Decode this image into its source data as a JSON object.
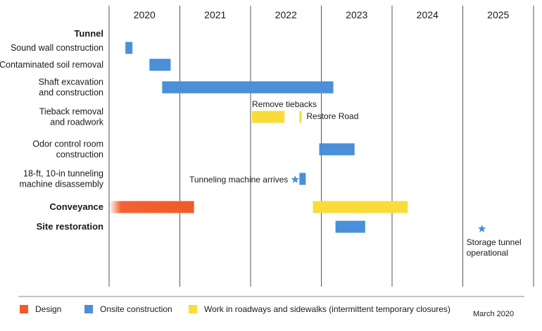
{
  "chart_data": {
    "type": "gantt",
    "years": [
      "2020",
      "2021",
      "2022",
      "2023",
      "2024",
      "2025"
    ],
    "x_range": [
      2020.0,
      2026.0
    ],
    "rows": [
      {
        "lines": [
          "Tunnel"
        ],
        "bold": true
      },
      {
        "lines": [
          "Sound wall construction"
        ],
        "bold": false
      },
      {
        "lines": [
          "Contaminated soil removal"
        ],
        "bold": false
      },
      {
        "lines": [
          "Shaft excavation",
          "and construction"
        ],
        "bold": false
      },
      {
        "lines": [
          "Tieback removal",
          "and roadwork"
        ],
        "bold": false
      },
      {
        "lines": [
          "Odor control room",
          "construction"
        ],
        "bold": false
      },
      {
        "lines": [
          "18-ft, 10-in tunneling",
          "machine disassembly"
        ],
        "bold": false
      },
      {
        "lines": [
          "Conveyance"
        ],
        "bold": true
      },
      {
        "lines": [
          "Site restoration"
        ],
        "bold": true
      }
    ],
    "bars": [
      {
        "row": 1,
        "start": 2020.23,
        "end": 2020.33,
        "category": "onsite"
      },
      {
        "row": 2,
        "start": 2020.57,
        "end": 2020.87,
        "category": "onsite"
      },
      {
        "row": 3,
        "start": 2020.75,
        "end": 2023.17,
        "category": "onsite"
      },
      {
        "row": 4,
        "start": 2022.02,
        "end": 2022.48,
        "category": "roadway"
      },
      {
        "row": 4,
        "start": 2022.69,
        "end": 2022.72,
        "category": "roadway"
      },
      {
        "row": 5,
        "start": 2022.97,
        "end": 2023.47,
        "category": "onsite"
      },
      {
        "row": 6,
        "start": 2022.69,
        "end": 2022.78,
        "category": "onsite"
      },
      {
        "row": 7,
        "start": 2020.0,
        "end": 2021.2,
        "category": "design"
      },
      {
        "row": 7,
        "start": 2022.88,
        "end": 2024.22,
        "category": "roadway"
      },
      {
        "row": 8,
        "start": 2023.2,
        "end": 2023.62,
        "category": "onsite"
      }
    ],
    "milestones": [
      {
        "row": 6,
        "time": 2022.6,
        "label": "Tunneling machine arrives",
        "label_side": "left"
      },
      {
        "time": 2025.25,
        "label_lines": [
          "Storage tunnel",
          "operational"
        ]
      }
    ],
    "annotations": [
      {
        "text": "Remove tiebacks"
      },
      {
        "text": "Restore Road"
      }
    ],
    "legend": [
      {
        "category": "design",
        "label": "Design",
        "color": "#f15a29"
      },
      {
        "category": "onsite",
        "label": "Onsite construction",
        "color": "#4a8fd8"
      },
      {
        "category": "roadway",
        "label": "Work in roadways and sidewalks (intermittent temporary closures)",
        "color": "#f9dc3a"
      }
    ],
    "date_note": "March 2020"
  }
}
